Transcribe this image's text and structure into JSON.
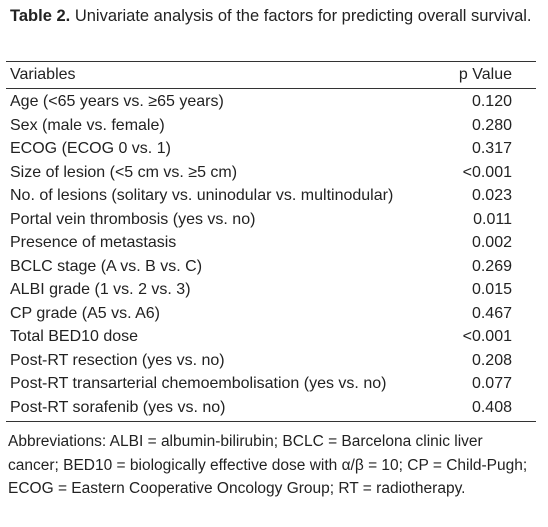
{
  "header": {
    "label": "Table 2.",
    "title": "Univariate analysis of the factors for predicting overall survival."
  },
  "table": {
    "columns": [
      "Variables",
      "p Value"
    ],
    "rows": [
      [
        "Age (<65 years vs. ≥65 years)",
        "0.120"
      ],
      [
        "Sex (male vs. female)",
        "0.280"
      ],
      [
        "ECOG (ECOG 0 vs. 1)",
        "0.317"
      ],
      [
        "Size of lesion (<5 cm vs. ≥5 cm)",
        "<0.001"
      ],
      [
        "No. of lesions (solitary vs. uninodular vs. multinodular)",
        "0.023"
      ],
      [
        "Portal vein thrombosis (yes vs. no)",
        "0.011"
      ],
      [
        "Presence of metastasis",
        "0.002"
      ],
      [
        "BCLC stage (A vs. B vs. C)",
        "0.269"
      ],
      [
        "ALBI grade (1 vs. 2 vs. 3)",
        "0.015"
      ],
      [
        "CP grade (A5 vs. A6)",
        "0.467"
      ],
      [
        "Total BED10 dose",
        "<0.001"
      ],
      [
        "Post-RT resection (yes vs. no)",
        "0.208"
      ],
      [
        "Post-RT transarterial chemoembolisation (yes vs. no)",
        "0.077"
      ],
      [
        "Post-RT sorafenib (yes vs. no)",
        "0.408"
      ]
    ]
  },
  "footnote": "Abbreviations: ALBI = albumin-bilirubin; BCLC = Barcelona clinic liver cancer; BED10 = biologically effective dose with α/β = 10; CP = Child-Pugh; ECOG = Eastern Cooperative Oncology Group; RT = radiotherapy."
}
